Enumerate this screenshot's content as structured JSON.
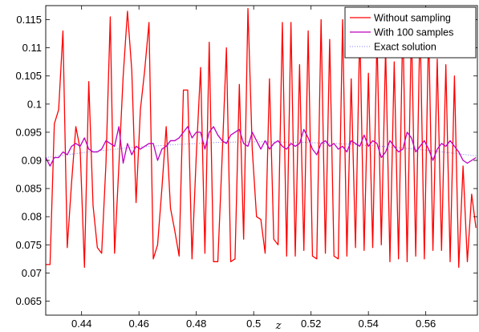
{
  "chart_data": {
    "type": "line",
    "title": "",
    "xlabel": "z",
    "ylabel": "",
    "xlim": [
      0.4275,
      0.578
    ],
    "ylim": [
      0.0625,
      0.1175
    ],
    "grid": false,
    "legend_position": "top-right",
    "x_ticks": [
      0.44,
      0.46,
      0.48,
      0.5,
      0.52,
      0.54,
      0.56
    ],
    "x_tick_labels": [
      "0.44",
      "0.46",
      "0.48",
      "0.5",
      "0.52",
      "0.54",
      "0.56"
    ],
    "y_ticks": [
      0.065,
      0.07,
      0.075,
      0.08,
      0.085,
      0.09,
      0.095,
      0.1,
      0.105,
      0.11,
      0.115
    ],
    "y_tick_labels": [
      "0.065",
      "0.07",
      "0.075",
      "0.08",
      "0.085",
      "0.09",
      "0.095",
      "0.1",
      "0.105",
      "0.11",
      "0.115"
    ],
    "series": [
      {
        "name": "Without sampling",
        "color": "#ff0000",
        "style": "solid",
        "x": [
          0.4275,
          0.429,
          0.4305,
          0.432,
          0.4335,
          0.435,
          0.4365,
          0.438,
          0.4395,
          0.441,
          0.4425,
          0.444,
          0.4455,
          0.447,
          0.4485,
          0.45,
          0.4515,
          0.453,
          0.4545,
          0.456,
          0.4575,
          0.459,
          0.4605,
          0.462,
          0.4635,
          0.465,
          0.4665,
          0.468,
          0.4695,
          0.471,
          0.4725,
          0.474,
          0.4755,
          0.477,
          0.4785,
          0.48,
          0.4815,
          0.483,
          0.4845,
          0.486,
          0.4875,
          0.489,
          0.4905,
          0.492,
          0.4935,
          0.495,
          0.4965,
          0.498,
          0.4995,
          0.501,
          0.5025,
          0.504,
          0.5055,
          0.507,
          0.5085,
          0.51,
          0.5115,
          0.513,
          0.5145,
          0.516,
          0.5175,
          0.519,
          0.5205,
          0.522,
          0.5235,
          0.525,
          0.5265,
          0.528,
          0.5295,
          0.531,
          0.5325,
          0.534,
          0.5355,
          0.537,
          0.5385,
          0.54,
          0.5415,
          0.543,
          0.5445,
          0.546,
          0.5475,
          0.549,
          0.5505,
          0.552,
          0.5535,
          0.555,
          0.5565,
          0.558,
          0.5595,
          0.561,
          0.5625,
          0.564,
          0.5655,
          0.567,
          0.5685,
          0.57,
          0.5715,
          0.573,
          0.5745,
          0.576,
          0.5775
        ],
        "y": [
          0.0715,
          0.0715,
          0.0965,
          0.099,
          0.113,
          0.0745,
          0.086,
          0.096,
          0.092,
          0.071,
          0.104,
          0.082,
          0.0745,
          0.0735,
          0.0895,
          0.1155,
          0.0735,
          0.089,
          0.105,
          0.1165,
          0.106,
          0.0825,
          0.099,
          0.106,
          0.1145,
          0.0725,
          0.075,
          0.085,
          0.096,
          0.0815,
          0.0775,
          0.073,
          0.1025,
          0.1025,
          0.0725,
          0.091,
          0.1065,
          0.0735,
          0.111,
          0.072,
          0.072,
          0.0905,
          0.11,
          0.072,
          0.0725,
          0.1035,
          0.076,
          0.117,
          0.092,
          0.08,
          0.0795,
          0.0735,
          0.1045,
          0.076,
          0.075,
          0.1145,
          0.073,
          0.1145,
          0.073,
          0.107,
          0.074,
          0.113,
          0.073,
          0.0725,
          0.115,
          0.0735,
          0.1115,
          0.073,
          0.0725,
          0.115,
          0.073,
          0.1045,
          0.0745,
          0.1135,
          0.074,
          0.1055,
          0.0745,
          0.112,
          0.075,
          0.11,
          0.072,
          0.1075,
          0.0725,
          0.115,
          0.072,
          0.114,
          0.073,
          0.115,
          0.0725,
          0.1135,
          0.074,
          0.108,
          0.074,
          0.107,
          0.072,
          0.105,
          0.071,
          0.089,
          0.072,
          0.084,
          0.078
        ]
      },
      {
        "name": "With 100 samples",
        "color": "#bf00bf",
        "style": "solid",
        "x": [
          0.4275,
          0.429,
          0.4305,
          0.432,
          0.4335,
          0.435,
          0.4365,
          0.438,
          0.4395,
          0.441,
          0.4425,
          0.444,
          0.4455,
          0.447,
          0.4485,
          0.45,
          0.4515,
          0.453,
          0.4545,
          0.456,
          0.4575,
          0.459,
          0.4605,
          0.462,
          0.4635,
          0.465,
          0.4665,
          0.468,
          0.4695,
          0.471,
          0.4725,
          0.474,
          0.4755,
          0.477,
          0.4785,
          0.48,
          0.4815,
          0.483,
          0.4845,
          0.486,
          0.4875,
          0.489,
          0.4905,
          0.492,
          0.4935,
          0.495,
          0.4965,
          0.498,
          0.4995,
          0.501,
          0.5025,
          0.504,
          0.5055,
          0.507,
          0.5085,
          0.51,
          0.5115,
          0.513,
          0.5145,
          0.516,
          0.5175,
          0.519,
          0.5205,
          0.522,
          0.5235,
          0.525,
          0.5265,
          0.528,
          0.5295,
          0.531,
          0.5325,
          0.534,
          0.5355,
          0.537,
          0.5385,
          0.54,
          0.5415,
          0.543,
          0.5445,
          0.546,
          0.5475,
          0.549,
          0.5505,
          0.552,
          0.5535,
          0.555,
          0.5565,
          0.558,
          0.5595,
          0.561,
          0.5625,
          0.564,
          0.5655,
          0.567,
          0.5685,
          0.57,
          0.5715,
          0.573,
          0.5745,
          0.576,
          0.5775
        ],
        "y": [
          0.0905,
          0.089,
          0.0905,
          0.0905,
          0.0915,
          0.091,
          0.0925,
          0.093,
          0.0925,
          0.094,
          0.092,
          0.0915,
          0.0915,
          0.092,
          0.0935,
          0.093,
          0.0925,
          0.096,
          0.0895,
          0.093,
          0.091,
          0.0925,
          0.092,
          0.0925,
          0.093,
          0.093,
          0.09,
          0.092,
          0.0925,
          0.0935,
          0.0935,
          0.094,
          0.095,
          0.096,
          0.094,
          0.095,
          0.095,
          0.092,
          0.095,
          0.096,
          0.0945,
          0.0935,
          0.093,
          0.0945,
          0.095,
          0.0955,
          0.093,
          0.0925,
          0.095,
          0.0935,
          0.092,
          0.0935,
          0.092,
          0.093,
          0.0935,
          0.0925,
          0.092,
          0.093,
          0.0925,
          0.093,
          0.0955,
          0.094,
          0.092,
          0.091,
          0.093,
          0.0935,
          0.0925,
          0.093,
          0.092,
          0.0925,
          0.0915,
          0.0935,
          0.093,
          0.0925,
          0.0945,
          0.0925,
          0.0935,
          0.093,
          0.0905,
          0.0915,
          0.0935,
          0.0925,
          0.0915,
          0.092,
          0.095,
          0.094,
          0.0915,
          0.0925,
          0.0935,
          0.092,
          0.09,
          0.092,
          0.093,
          0.0925,
          0.0935,
          0.0925,
          0.0915,
          0.09,
          0.0895,
          0.09,
          0.0905
        ]
      },
      {
        "name": "Exact solution",
        "color": "#7f7fff",
        "style": "dotted",
        "x": [
          0.4275,
          0.4425,
          0.4575,
          0.4725,
          0.4875,
          0.5025,
          0.5175,
          0.5325,
          0.5475,
          0.5625,
          0.5775
        ],
        "y": [
          0.0905,
          0.0915,
          0.0923,
          0.0928,
          0.0932,
          0.0933,
          0.0932,
          0.0929,
          0.0924,
          0.0917,
          0.0908
        ]
      }
    ]
  }
}
